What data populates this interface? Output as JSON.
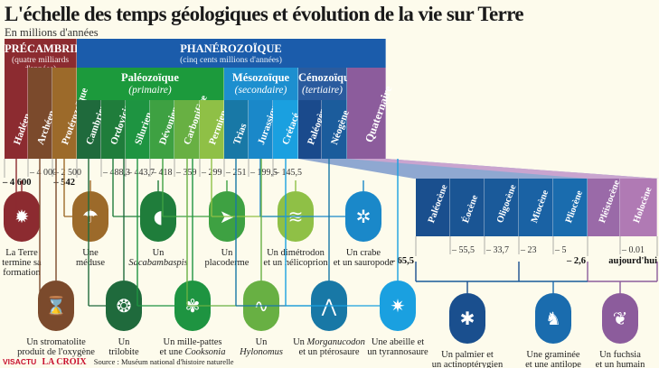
{
  "title": "L'échelle des temps géologiques et évolution de la vie sur Terre",
  "subtitle": "En millions d'années",
  "eons": [
    {
      "name": "PRÉCAMBRIEN",
      "note": "(quatre milliards d'années)",
      "color": "#8c2b30"
    },
    {
      "name": "PHANÉROZOÏQUE",
      "note": "(cinq cents millions d'années)",
      "color": "#1b5cab"
    }
  ],
  "eras": [
    {
      "name": "Paléozoïque",
      "note": "(primaire)",
      "color": "#1c9a3c"
    },
    {
      "name": "Mésozoïque",
      "note": "(secondaire)",
      "color": "#1d8fcf"
    },
    {
      "name": "Cénozoïque",
      "note": "(tertiaire)",
      "color": "#2a5b9e"
    },
    {
      "name": "Quaternaire",
      "note": "",
      "color": "#8c5c9c"
    }
  ],
  "periods": [
    {
      "name": "Hadéen",
      "color": "#8c2b30"
    },
    {
      "name": "Archéen",
      "color": "#7b4a2c"
    },
    {
      "name": "Protérozoïque",
      "color": "#9c6a2a"
    },
    {
      "name": "Cambrien",
      "color": "#1f6a3c"
    },
    {
      "name": "Ordovicien",
      "color": "#1f7d3b"
    },
    {
      "name": "Silurien",
      "color": "#1e9441"
    },
    {
      "name": "Dévonien",
      "color": "#3ea142"
    },
    {
      "name": "Carbonifère",
      "color": "#68b043"
    },
    {
      "name": "Permien",
      "color": "#8fc046"
    },
    {
      "name": "Trias",
      "color": "#1878a6"
    },
    {
      "name": "Jurassique",
      "color": "#1a88c9"
    },
    {
      "name": "Crétacé",
      "color": "#1aa0e0"
    },
    {
      "name": "Paléogène",
      "color": "#1a4a8c"
    },
    {
      "name": "Néogène",
      "color": "#1b5c9c"
    }
  ],
  "epochs": [
    {
      "name": "Paléocène",
      "color": "#1a4f8e"
    },
    {
      "name": "Éocène",
      "color": "#1a5594"
    },
    {
      "name": "Oligocène",
      "color": "#1a5a9a"
    },
    {
      "name": "Miocène",
      "color": "#1a62a4"
    },
    {
      "name": "Pliocène",
      "color": "#1a6cae"
    },
    {
      "name": "Pléistocène",
      "color": "#9a6aa8"
    },
    {
      "name": "Holocène",
      "color": "#b07ab4"
    }
  ],
  "boundaries": [
    {
      "label": "– 4 600",
      "bold": true
    },
    {
      "label": "– 4 000"
    },
    {
      "label": "– 2 500"
    },
    {
      "label": "– 542",
      "bold": true
    },
    {
      "label": "– 488,3"
    },
    {
      "label": "– 443,7"
    },
    {
      "label": "– 418"
    },
    {
      "label": "– 359"
    },
    {
      "label": "– 299"
    },
    {
      "label": "– 251"
    },
    {
      "label": "– 199,5"
    },
    {
      "label": "– 145,5"
    },
    {
      "label": "– 65,5",
      "bold": true
    },
    {
      "label": "– 55,5"
    },
    {
      "label": "– 33,7"
    },
    {
      "label": "– 23"
    },
    {
      "label": "– 5"
    },
    {
      "label": "– 2,6",
      "bold": true
    },
    {
      "label": "– 0.01"
    },
    {
      "label": "aujourd'hui",
      "bold": true
    }
  ],
  "events": [
    {
      "l1": "La Terre",
      "l2": "termine sa",
      "l3": "formation",
      "icon": "earth-impact-icon",
      "glyph": "✹",
      "color": "#8c2b30"
    },
    {
      "l1": "Une",
      "l2": "méduse",
      "icon": "jellyfish-icon",
      "glyph": "☂",
      "color": "#9c6a2a"
    },
    {
      "l1": "Un",
      "l2i": "Sacabambaspis",
      "icon": "fish-icon",
      "glyph": "◖",
      "color": "#1f7d3b"
    },
    {
      "l1": "Un",
      "l2": "placoderme",
      "icon": "placoderm-icon",
      "glyph": "➤",
      "color": "#3ea142"
    },
    {
      "l1": "Un dimétrodon",
      "l2": "et un hélicoprion",
      "icon": "dimetrodon-icon",
      "glyph": "≋",
      "color": "#8fc046"
    },
    {
      "l1": "Un crabe",
      "l2": "et un sauropode",
      "icon": "crab-sauropod-icon",
      "glyph": "✲",
      "color": "#1a88c9"
    },
    {
      "l1": "Un stromatolite",
      "l2": "produit de l'oxygène",
      "icon": "stromatolite-icon",
      "glyph": "⌛",
      "color": "#7b4a2c"
    },
    {
      "l1": "Un",
      "l2": "trilobite",
      "icon": "trilobite-icon",
      "glyph": "❂",
      "color": "#1f6a3c"
    },
    {
      "l1": "Un mille-pattes",
      "l2": "et une ",
      "l2i": "Cooksonia",
      "icon": "millipede-plant-icon",
      "glyph": "✾",
      "color": "#1e9441"
    },
    {
      "l1": "Un",
      "l2i": "Hylonomus",
      "icon": "lizard-icon",
      "glyph": "∿",
      "color": "#68b043"
    },
    {
      "l1": "Un ",
      "l1i": "Morganucodon",
      "l2": "et un ptérosaure",
      "icon": "pterosaur-icon",
      "glyph": "⋀",
      "color": "#1878a6"
    },
    {
      "l1": "Une abeille et",
      "l2": "un tyrannosaure",
      "icon": "bee-trex-icon",
      "glyph": "✷",
      "color": "#1aa0e0"
    },
    {
      "l1": "Un palmier et",
      "l2": "un actinoptérygien",
      "icon": "palm-fish-icon",
      "glyph": "✱",
      "color": "#1a4f8e"
    },
    {
      "l1": "Une graminée",
      "l2": "et une antilope",
      "icon": "antelope-grass-icon",
      "glyph": "♞",
      "color": "#1a6cae"
    },
    {
      "l1": "Un fuchsia",
      "l2": "et un humain",
      "icon": "fetus-fuchsia-icon",
      "glyph": "❦",
      "color": "#8c5c9c"
    }
  ],
  "footer": {
    "brand1": "VISACTU",
    "brand2": "LA CROIX",
    "source": "Source : Muséum national d'histoire naturelle"
  }
}
